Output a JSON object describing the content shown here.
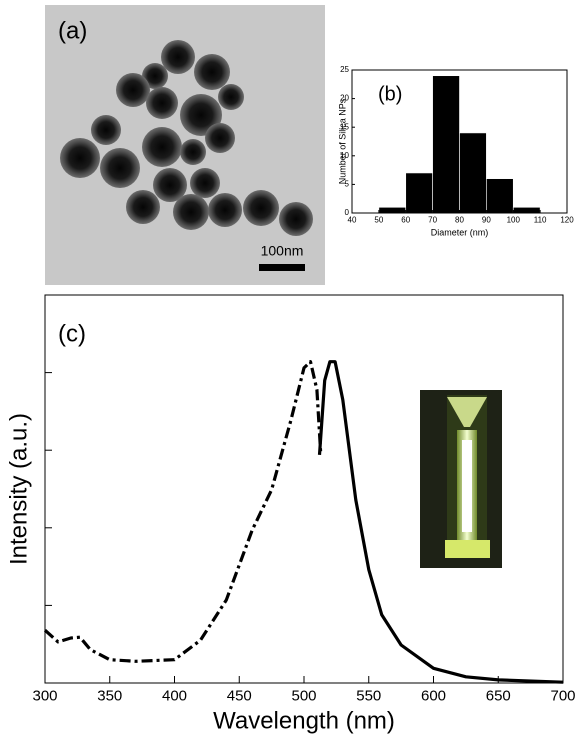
{
  "image": {
    "label": "(a)",
    "scale_bar": "100nm"
  },
  "chart_data": [
    {
      "type": "histogram",
      "annotation": "(b)",
      "xlabel": "Diameter (nm)",
      "ylabel": "Number of Silica NPs",
      "bins": [
        50,
        60,
        70,
        80,
        90,
        100,
        110
      ],
      "values": [
        1,
        7,
        24,
        14,
        6,
        1
      ],
      "color": "#000000",
      "xlim": [
        40,
        120
      ],
      "xticks": [
        40,
        50,
        60,
        70,
        80,
        90,
        100,
        110,
        120
      ],
      "ylim": [
        0,
        25
      ],
      "yticks": [
        0,
        5,
        10,
        15,
        20,
        25
      ]
    },
    {
      "type": "line",
      "annotation": "(c)",
      "xlabel": "Wavelength (nm)",
      "ylabel": "Intensity (a.u.)",
      "xlim": [
        300,
        700
      ],
      "xticks": [
        300,
        350,
        400,
        450,
        500,
        550,
        600,
        650,
        700
      ],
      "ylim": [
        0,
        5
      ],
      "yticks": [
        0,
        1,
        2,
        3,
        4,
        5
      ],
      "series": [
        {
          "color": "#000000",
          "style": "dashdot",
          "x": [
            300,
            310,
            320,
            327,
            335,
            350,
            370,
            400,
            420,
            440,
            460,
            475,
            490,
            500,
            505,
            510,
            513
          ],
          "values": [
            0.68,
            0.53,
            0.58,
            0.59,
            0.43,
            0.3,
            0.28,
            0.3,
            0.55,
            1.07,
            1.97,
            2.49,
            3.39,
            4.06,
            4.14,
            3.78,
            2.94
          ]
        },
        {
          "color": "#000000",
          "style": "solid",
          "x": [
            512,
            516,
            520,
            524,
            530,
            540,
            550,
            560,
            575,
            600,
            625,
            650,
            700
          ],
          "values": [
            2.94,
            3.9,
            4.14,
            4.14,
            3.65,
            2.36,
            1.46,
            0.88,
            0.49,
            0.19,
            0.08,
            0.04,
            0.01
          ]
        }
      ]
    }
  ]
}
